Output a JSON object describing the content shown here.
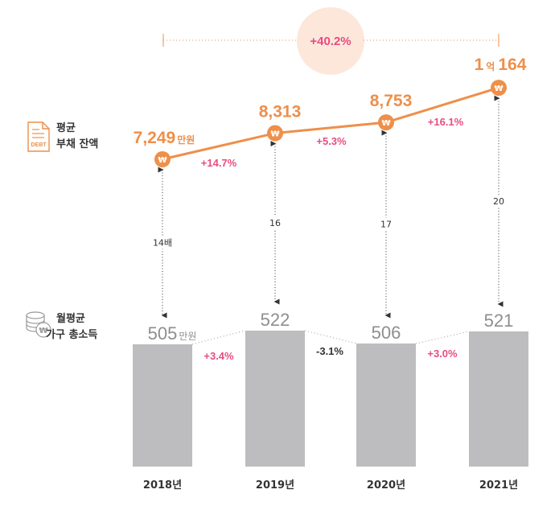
{
  "chart_data": {
    "type": "bar+line",
    "categories": [
      "2018년",
      "2019년",
      "2020년",
      "2021년"
    ],
    "debt": {
      "label_line1": "평균",
      "label_line2": "부채 잔액",
      "icon_text": "DEBT",
      "values": [
        7249,
        8313,
        8753,
        10164
      ],
      "labels": [
        {
          "main": "7,249",
          "unit": "만원"
        },
        {
          "main": "8,313",
          "unit": ""
        },
        {
          "main": "8,753",
          "unit": ""
        },
        {
          "pre": "1",
          "unit": "억",
          "main": "164"
        }
      ],
      "changes": [
        "+14.7%",
        "+5.3%",
        "+16.1%"
      ],
      "color": "#ee8f4a"
    },
    "income": {
      "label_line1": "월평균",
      "label_line2": "가구 총소득",
      "values": [
        505,
        522,
        506,
        521
      ],
      "labels": [
        {
          "main": "505",
          "unit": "만원"
        },
        {
          "main": "522",
          "unit": ""
        },
        {
          "main": "506",
          "unit": ""
        },
        {
          "main": "521",
          "unit": ""
        }
      ],
      "changes": [
        "+3.4%",
        "-3.1%",
        "+3.0%"
      ],
      "color": "#bdbdbf"
    },
    "ratios": [
      "14배",
      "16",
      "17",
      "20"
    ],
    "total_change": "+40.2%",
    "highlight_color": "#e84c83"
  }
}
